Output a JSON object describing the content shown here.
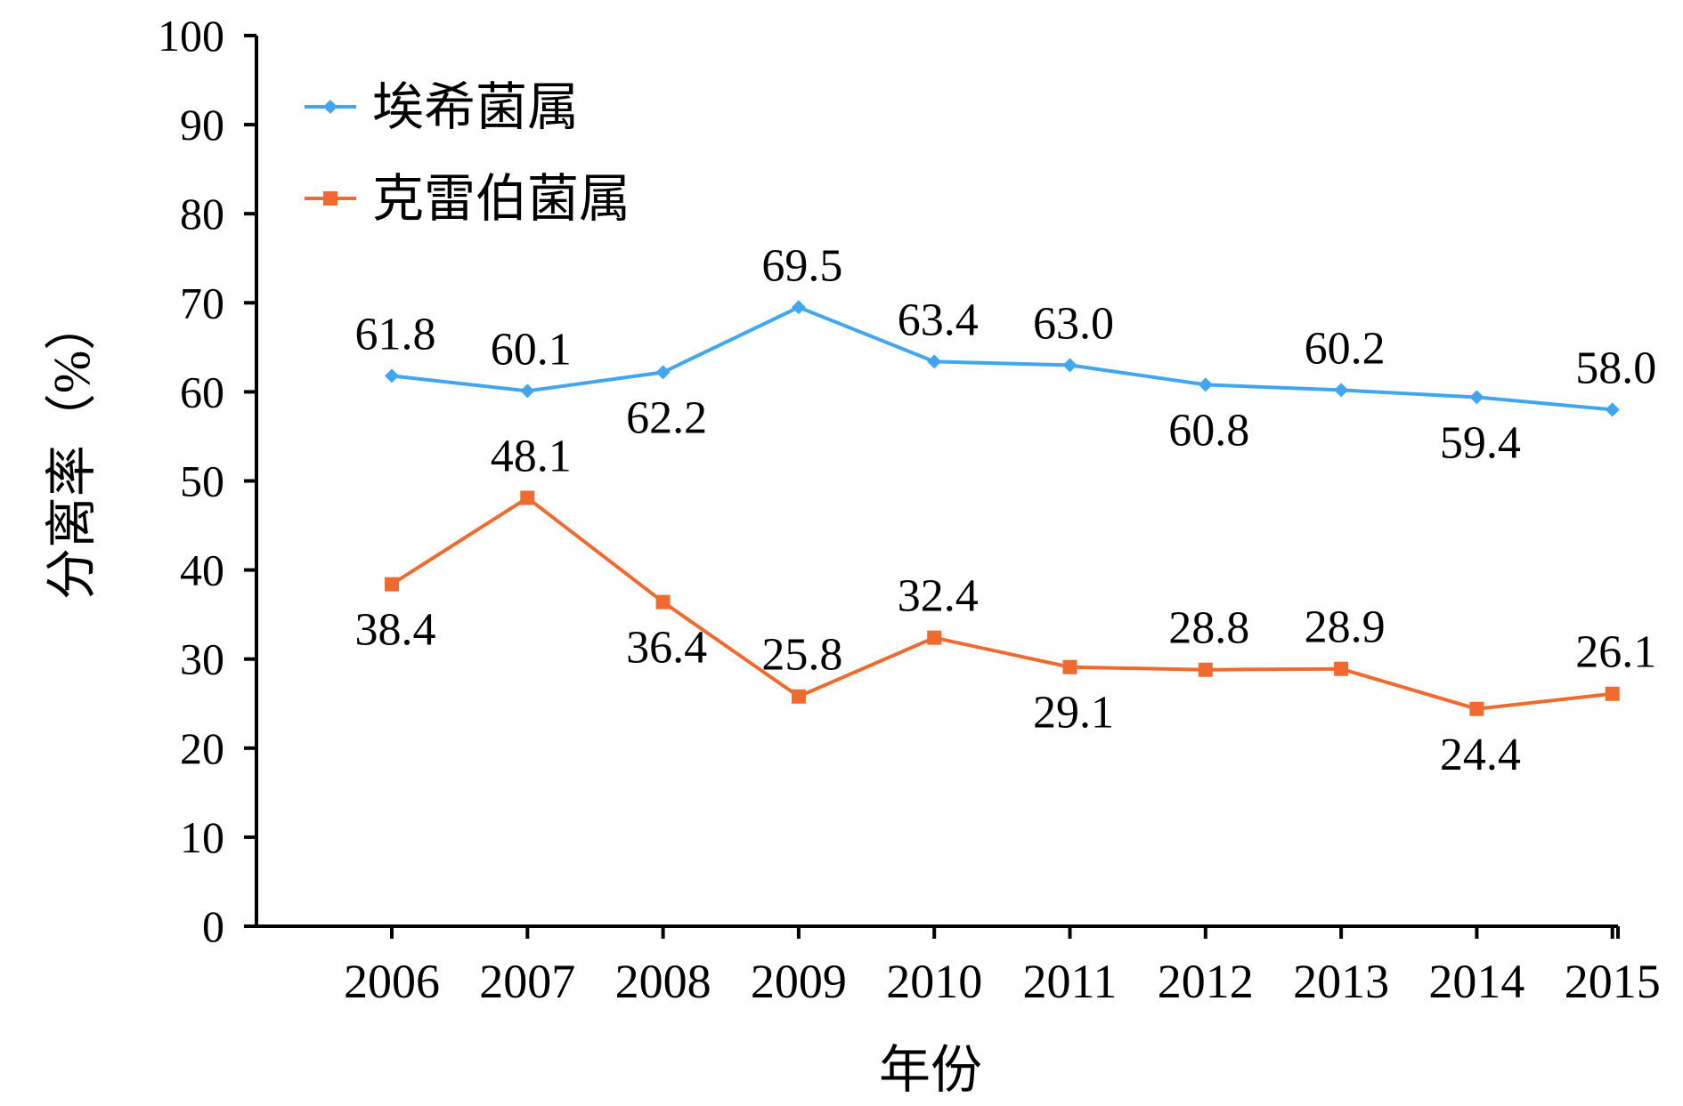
{
  "chart_data": {
    "type": "line",
    "title": "",
    "xlabel": "年份",
    "ylabel": "分离率（%）",
    "categories": [
      "2006",
      "2007",
      "2008",
      "2009",
      "2010",
      "2011",
      "2012",
      "2013",
      "2014",
      "2015"
    ],
    "ylim": [
      0,
      100
    ],
    "yticks": [
      "0",
      "10",
      "20",
      "30",
      "40",
      "50",
      "60",
      "70",
      "80",
      "90",
      "100"
    ],
    "grid": false,
    "legend_position": "top-left",
    "series": [
      {
        "name": "埃希菌属",
        "color": "#41a6f0",
        "marker": "diamond",
        "values": [
          61.8,
          60.1,
          62.2,
          69.5,
          63.4,
          63.0,
          60.8,
          60.2,
          59.4,
          58.0
        ],
        "labels": [
          "61.8",
          "60.1",
          "62.2",
          "69.5",
          "63.4",
          "63.0",
          "60.8",
          "60.2",
          "59.4",
          "58.0"
        ],
        "label_positions": [
          "above",
          "above",
          "below",
          "above",
          "above",
          "above",
          "below",
          "above",
          "below",
          "above"
        ]
      },
      {
        "name": "克雷伯菌属",
        "color": "#ef6a2e",
        "marker": "square",
        "values": [
          38.4,
          48.1,
          36.4,
          25.8,
          32.4,
          29.1,
          28.8,
          28.9,
          24.4,
          26.1
        ],
        "labels": [
          "38.4",
          "48.1",
          "36.4",
          "25.8",
          "32.4",
          "29.1",
          "28.8",
          "28.9",
          "24.4",
          "26.1"
        ],
        "label_positions": [
          "below",
          "above",
          "below",
          "above",
          "above",
          "below",
          "above",
          "above",
          "below",
          "above"
        ]
      }
    ]
  }
}
